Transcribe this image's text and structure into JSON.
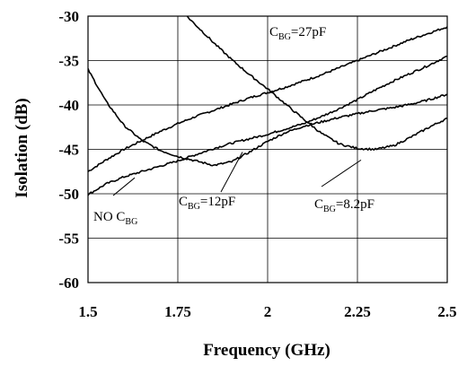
{
  "chart_data": {
    "type": "line",
    "xlabel": "Frequency (GHz)",
    "ylabel": "Isolation (dB)",
    "xlim": [
      1.5,
      2.5
    ],
    "ylim": [
      -60,
      -30
    ],
    "x_ticks": [
      "1.5",
      "1.75",
      "2",
      "2.25",
      "2.5"
    ],
    "y_ticks": [
      "-30",
      "-35",
      "-40",
      "-45",
      "-50",
      "-55",
      "-60"
    ],
    "grid": true,
    "legend": "none",
    "series": [
      {
        "label": {
          "base": "NO C",
          "sub": "BG",
          "suffix": ""
        },
        "x": [
          1.5,
          1.55,
          1.6,
          1.65,
          1.7,
          1.75,
          1.8,
          1.85,
          1.9,
          1.95,
          2.0,
          2.05,
          2.1,
          2.15,
          2.2,
          2.25,
          2.3,
          2.35,
          2.4,
          2.45,
          2.5
        ],
        "y": [
          -47.5,
          -46.2,
          -45.0,
          -44.0,
          -43.0,
          -42.1,
          -41.3,
          -40.6,
          -39.9,
          -39.2,
          -38.6,
          -38.0,
          -37.3,
          -36.6,
          -35.8,
          -35.0,
          -34.2,
          -33.4,
          -32.6,
          -31.9,
          -31.2
        ]
      },
      {
        "label": {
          "base": "C",
          "sub": "BG",
          "suffix": "=27pF"
        },
        "x": [
          1.5,
          1.55,
          1.6,
          1.65,
          1.7,
          1.75,
          1.8,
          1.85,
          1.9,
          1.95,
          2.0,
          2.05,
          2.1,
          2.15,
          2.2,
          2.25,
          2.3,
          2.35,
          2.4,
          2.45,
          2.5
        ],
        "y": [
          -50.1,
          -48.9,
          -48.1,
          -47.5,
          -46.9,
          -46.3,
          -45.6,
          -44.9,
          -44.3,
          -43.8,
          -43.3,
          -42.7,
          -42.1,
          -41.3,
          -40.4,
          -39.4,
          -38.3,
          -37.3,
          -36.4,
          -35.5,
          -34.5
        ]
      },
      {
        "label": {
          "base": "C",
          "sub": "BG",
          "suffix": "=12pF"
        },
        "x": [
          1.5,
          1.55,
          1.6,
          1.65,
          1.7,
          1.75,
          1.8,
          1.85,
          1.9,
          1.95,
          2.0,
          2.05,
          2.1,
          2.15,
          2.2,
          2.25,
          2.3,
          2.35,
          2.4,
          2.45,
          2.5
        ],
        "y": [
          -36.0,
          -39.6,
          -42.3,
          -44.0,
          -45.1,
          -45.8,
          -46.3,
          -46.8,
          -46.4,
          -45.3,
          -44.1,
          -43.1,
          -42.4,
          -41.9,
          -41.4,
          -41.0,
          -40.6,
          -40.3,
          -39.9,
          -39.4,
          -38.8
        ]
      },
      {
        "label": {
          "base": "C",
          "sub": "BG",
          "suffix": "=8.2pF"
        },
        "x": [
          1.75,
          1.8,
          1.85,
          1.9,
          1.95,
          2.0,
          2.05,
          2.1,
          2.15,
          2.2,
          2.25,
          2.3,
          2.35,
          2.4,
          2.45,
          2.5
        ],
        "y": [
          -29.0,
          -31.0,
          -33.0,
          -34.9,
          -36.6,
          -38.2,
          -39.9,
          -41.6,
          -43.2,
          -44.4,
          -44.9,
          -45.0,
          -44.6,
          -43.6,
          -42.5,
          -41.5
        ]
      }
    ]
  }
}
